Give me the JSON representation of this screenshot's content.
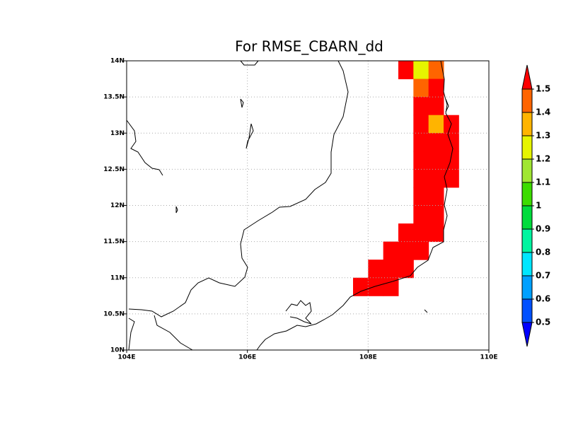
{
  "chart_data": {
    "type": "heatmap",
    "title": "For RMSE_CBARN_dd",
    "xlim": [
      104,
      110
    ],
    "ylim": [
      10,
      14
    ],
    "xticks": [
      {
        "value": 104,
        "label": "104E"
      },
      {
        "value": 106,
        "label": "106E"
      },
      {
        "value": 108,
        "label": "108E"
      },
      {
        "value": 110,
        "label": "110E"
      }
    ],
    "yticks": [
      {
        "value": 10,
        "label": "10N"
      },
      {
        "value": 10.5,
        "label": "10.5N"
      },
      {
        "value": 11,
        "label": "11N"
      },
      {
        "value": 11.5,
        "label": "11.5N"
      },
      {
        "value": 12,
        "label": "12N"
      },
      {
        "value": 12.5,
        "label": "12.5N"
      },
      {
        "value": 13,
        "label": "13N"
      },
      {
        "value": 13.5,
        "label": "13.5N"
      },
      {
        "value": 14,
        "label": "14N"
      }
    ],
    "grid": true,
    "x": [
      108.5,
      108.75,
      109.0,
      108.75,
      109.0,
      108.75,
      109.0,
      108.75,
      109.0,
      109.25,
      108.75,
      109.0,
      109.25,
      108.75,
      109.0,
      109.25,
      108.75,
      109.0,
      109.25,
      108.75,
      109.0,
      108.75,
      109.0,
      108.5,
      108.75,
      109.0,
      108.25,
      108.5,
      108.75,
      108.0,
      108.25,
      108.5,
      107.75,
      108.0,
      108.25
    ],
    "y": [
      13.75,
      13.75,
      13.75,
      13.5,
      13.5,
      13.25,
      13.25,
      13.0,
      13.0,
      13.0,
      12.75,
      12.75,
      12.75,
      12.5,
      12.5,
      12.5,
      12.25,
      12.25,
      12.25,
      12.0,
      12.0,
      11.75,
      11.75,
      11.5,
      11.5,
      11.5,
      11.25,
      11.25,
      11.25,
      11.0,
      11.0,
      11.0,
      10.75,
      10.75,
      10.75
    ],
    "values": [
      1.6,
      1.25,
      1.45,
      1.45,
      1.6,
      1.6,
      1.6,
      1.6,
      1.35,
      1.6,
      1.6,
      1.6,
      1.6,
      1.6,
      1.6,
      1.6,
      1.6,
      1.6,
      1.6,
      1.6,
      1.6,
      1.6,
      1.6,
      1.6,
      1.6,
      1.6,
      1.6,
      1.6,
      1.6,
      1.6,
      1.6,
      1.6,
      1.6,
      1.6,
      1.6
    ],
    "colorbar": {
      "levels": [
        0.5,
        0.6,
        0.7,
        0.8,
        0.9,
        1,
        1.1,
        1.2,
        1.3,
        1.4,
        1.5
      ],
      "colors": [
        "#0000ff",
        "#0050ff",
        "#00a0ff",
        "#00e6ff",
        "#00f5a0",
        "#00dc3c",
        "#3cdc00",
        "#a0e632",
        "#e6f500",
        "#ffb400",
        "#ff6400",
        "#ff0000"
      ]
    }
  }
}
